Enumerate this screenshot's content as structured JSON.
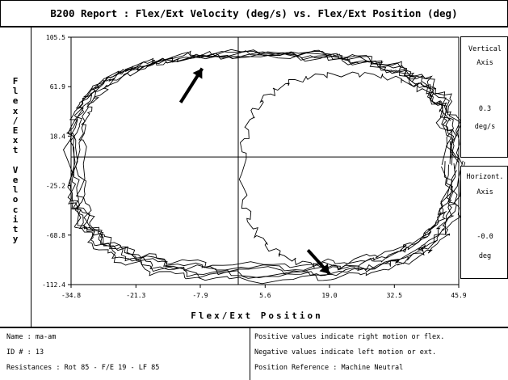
{
  "title": "B200 Report : Flex/Ext Velocity (deg/s) vs. Flex/Ext Position (deg)",
  "y_title_chars": [
    "F",
    "l",
    "e",
    "x",
    "/",
    "E",
    "x",
    "t",
    "",
    "V",
    "e",
    "l",
    "o",
    "c",
    "i",
    "t",
    "y"
  ],
  "right_panel": {
    "vertical_label_1": "Vertical",
    "vertical_label_2": "Axis",
    "vertical_value": "0.3",
    "vertical_unit": "deg/s",
    "horizontal_label_1": "Horizont.",
    "horizontal_label_2": "Axis",
    "horizontal_value": "-0.0",
    "horizontal_unit": "deg"
  },
  "info": {
    "name": "Name : ma-am",
    "id": "ID # : 13",
    "resistances": "Resistances : Rot 85 - F/E 19 - LF 85",
    "note_positive": "Positive values indicate right motion or flex.",
    "note_negative": "Negative values indicate left motion or ext.",
    "note_reference": "Position Reference : Machine Neutral"
  },
  "chart_data": {
    "type": "line",
    "xlabel": "Flex/Ext Position",
    "ylabel": "Flex/Ext Velocity",
    "xlim": [
      -34.8,
      45.9
    ],
    "ylim": [
      -112.4,
      105.5
    ],
    "x_ticks": [
      "-34.8",
      "-21.3",
      "-7.9",
      "5.6",
      "19.0",
      "32.5",
      "45.9"
    ],
    "y_ticks": [
      "105.5",
      "61.9",
      "18.4",
      "-25.2",
      "-68.8",
      "-112.4"
    ],
    "grid": false,
    "loops": [
      {
        "a": 40.0,
        "b": 98,
        "cx": 5.5,
        "cy": -6
      },
      {
        "a": 39.0,
        "b": 94,
        "cx": 5.0,
        "cy": -4
      },
      {
        "a": 38.5,
        "b": 97,
        "cx": 6.0,
        "cy": -7
      },
      {
        "a": 39.5,
        "b": 92,
        "cx": 4.5,
        "cy": -3
      },
      {
        "a": 40.5,
        "b": 100,
        "cx": 5.8,
        "cy": -8
      },
      {
        "a": 38.0,
        "b": 95,
        "cx": 5.2,
        "cy": -5
      }
    ],
    "inner_loop": {
      "cx": 23.0,
      "cy": -12,
      "a": 22.0,
      "b": 85
    },
    "arrows": [
      {
        "from": [
          -12.0,
          48
        ],
        "to": [
          -7.5,
          78
        ]
      },
      {
        "from": [
          14.5,
          -82
        ],
        "to": [
          19.0,
          -103
        ]
      }
    ]
  }
}
